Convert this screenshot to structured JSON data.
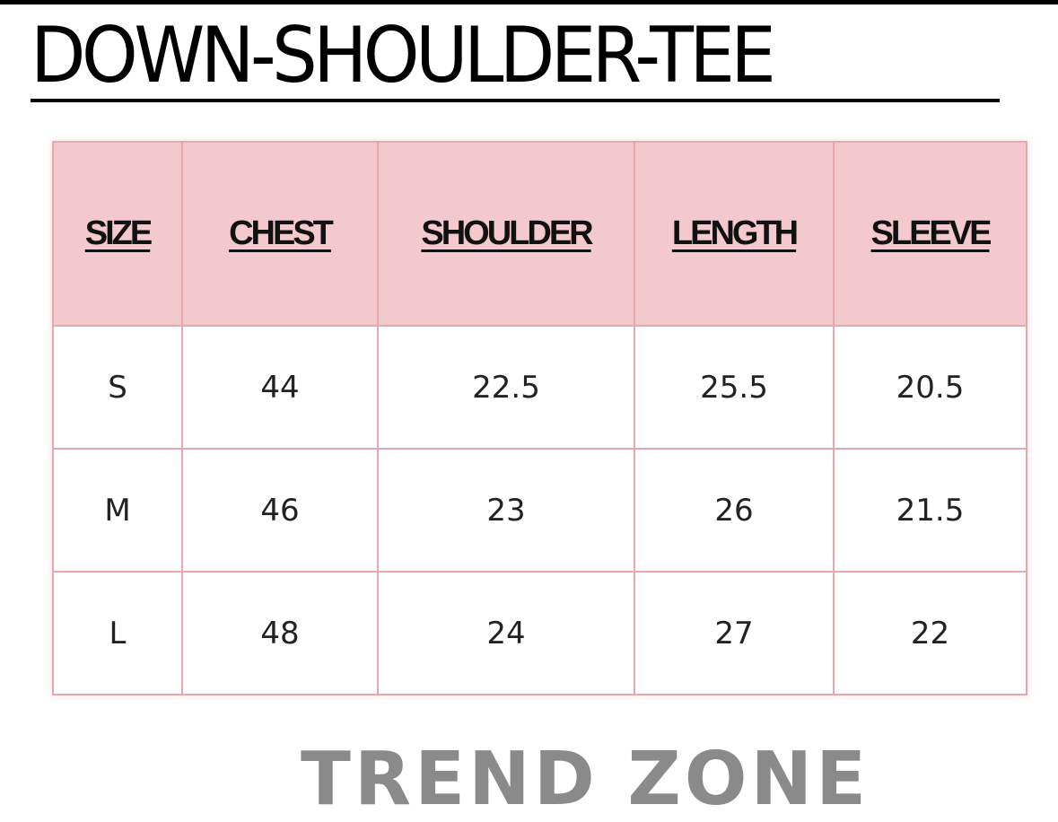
{
  "title": "DOWN-SHOULDER-TEE",
  "table": {
    "headers": [
      "SIZE",
      "CHEST",
      "SHOULDER",
      "LENGTH",
      "SLEEVE"
    ],
    "rows": [
      [
        "S",
        "44",
        "22.5",
        "25.5",
        "20.5"
      ],
      [
        "M",
        "46",
        "23",
        "26",
        "21.5"
      ],
      [
        "L",
        "48",
        "24",
        "27",
        "22"
      ]
    ]
  },
  "brand": "TREND ZONE",
  "colors": {
    "header_bg": "#f4c9cd",
    "border": "#e6a7ae",
    "brand_text": "#8a8a8a"
  }
}
